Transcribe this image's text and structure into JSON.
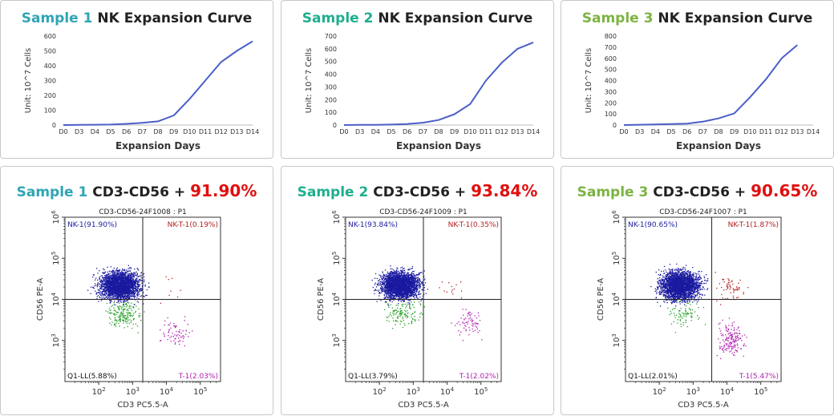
{
  "line_charts": [
    {
      "sample": "Sample 1",
      "title_rest": "NK Expansion Curve",
      "accent": "#2fa5b5"
    },
    {
      "sample": "Sample 2",
      "title_rest": "NK Expansion Curve",
      "accent": "#1fae8e"
    },
    {
      "sample": "Sample 3",
      "title_rest": "NK Expansion Curve",
      "accent": "#7cb342"
    }
  ],
  "flow_panels": [
    {
      "sample": "Sample 1",
      "marker": "CD3-CD56 +",
      "percent": "91.90%",
      "accent": "#2fa5b5",
      "percent_color": "#e01010"
    },
    {
      "sample": "Sample 2",
      "marker": "CD3-CD56 +",
      "percent": "93.84%",
      "accent": "#1fae8e",
      "percent_color": "#e01010"
    },
    {
      "sample": "Sample 3",
      "marker": "CD3-CD56 +",
      "percent": "90.65%",
      "accent": "#7cb342",
      "percent_color": "#e01010"
    }
  ],
  "chart_data": [
    {
      "type": "line",
      "title": "Sample 1 NK Expansion Curve",
      "xlabel": "Expansion Days",
      "ylabel": "Unit:  10^7 Cells",
      "categories": [
        "D0",
        "D3",
        "D4",
        "D5",
        "D6",
        "D7",
        "D8",
        "D9",
        "D10",
        "D11",
        "D12",
        "D13",
        "D14"
      ],
      "ylim": [
        0,
        600
      ],
      "yticks": [
        0,
        100,
        200,
        300,
        400,
        500,
        600
      ],
      "series": [
        {
          "values": [
            0,
            1,
            2,
            3,
            8,
            15,
            25,
            65,
            175,
            300,
            425,
            500,
            565
          ],
          "color": "#4a5fc8"
        }
      ]
    },
    {
      "type": "line",
      "title": "Sample 2 NK Expansion Curve",
      "xlabel": "Expansion Days",
      "ylabel": "Unit:  10^7 Cells",
      "categories": [
        "D0",
        "D3",
        "D4",
        "D5",
        "D6",
        "D7",
        "D8",
        "D9",
        "D10",
        "D11",
        "D12",
        "D13",
        "D14"
      ],
      "ylim": [
        0,
        700
      ],
      "yticks": [
        0,
        100,
        200,
        300,
        400,
        500,
        600,
        700
      ],
      "series": [
        {
          "values": [
            0,
            1,
            2,
            4,
            8,
            18,
            40,
            85,
            165,
            350,
            490,
            600,
            650
          ],
          "color": "#4a5fc8"
        }
      ]
    },
    {
      "type": "line",
      "title": "Sample 3 NK Expansion Curve",
      "xlabel": "Expansion Days",
      "ylabel": "Unit:  10^7 Cells",
      "categories": [
        "D0",
        "D3",
        "D4",
        "D5",
        "D6",
        "D7",
        "D8",
        "D9",
        "D10",
        "D11",
        "D12",
        "D13",
        "D14"
      ],
      "ylim": [
        0,
        800
      ],
      "yticks": [
        0,
        100,
        200,
        300,
        400,
        500,
        600,
        700,
        800
      ],
      "series": [
        {
          "values": [
            0,
            3,
            6,
            9,
            13,
            30,
            60,
            105,
            250,
            410,
            600,
            720,
            null
          ],
          "color": "#4a5fc8"
        }
      ]
    },
    {
      "type": "scatter",
      "title": "CD3-CD56-24F1008 : P1",
      "xlabel": "CD3 PC5.5-A",
      "ylabel": "CD56 PE-A",
      "log_scale": true,
      "quadrants": {
        "NK-1": "NK-1(91.90%)",
        "NK-T-1": "NK-T-1(0.19%)",
        "Q1-LL": "Q1-LL(5.88%)",
        "T-1": "T-1(2.03%)"
      },
      "quadrant_colors": {
        "NK-1": "#1a1aa0",
        "NK-T-1": "#b02020",
        "Q1-LL": "#111111",
        "T-1": "#b01eb0"
      }
    },
    {
      "type": "scatter",
      "title": "CD3-CD56-24F1009 : P1",
      "xlabel": "CD3 PC5.5-A",
      "ylabel": "CD56 PE-A",
      "log_scale": true,
      "quadrants": {
        "NK-1": "NK-1(93.84%)",
        "NK-T-1": "NK-T-1(0.35%)",
        "Q1-LL": "Q1-LL(3.79%)",
        "T-1": "T-1(2.02%)"
      },
      "quadrant_colors": {
        "NK-1": "#1a1aa0",
        "NK-T-1": "#b02020",
        "Q1-LL": "#111111",
        "T-1": "#b01eb0"
      }
    },
    {
      "type": "scatter",
      "title": "CD3-CD56-24F1007 : P1",
      "xlabel": "CD3 PC5.5-A",
      "ylabel": "CD56 PE-A",
      "log_scale": true,
      "quadrants": {
        "NK-1": "NK-1(90.65%)",
        "NK-T-1": "NK-T-1(1.87%)",
        "Q1-LL": "Q1-LL(2.01%)",
        "T-1": "T-1(5.47%)"
      },
      "quadrant_colors": {
        "NK-1": "#1a1aa0",
        "NK-T-1": "#b02020",
        "Q1-LL": "#111111",
        "T-1": "#b01eb0"
      }
    }
  ]
}
